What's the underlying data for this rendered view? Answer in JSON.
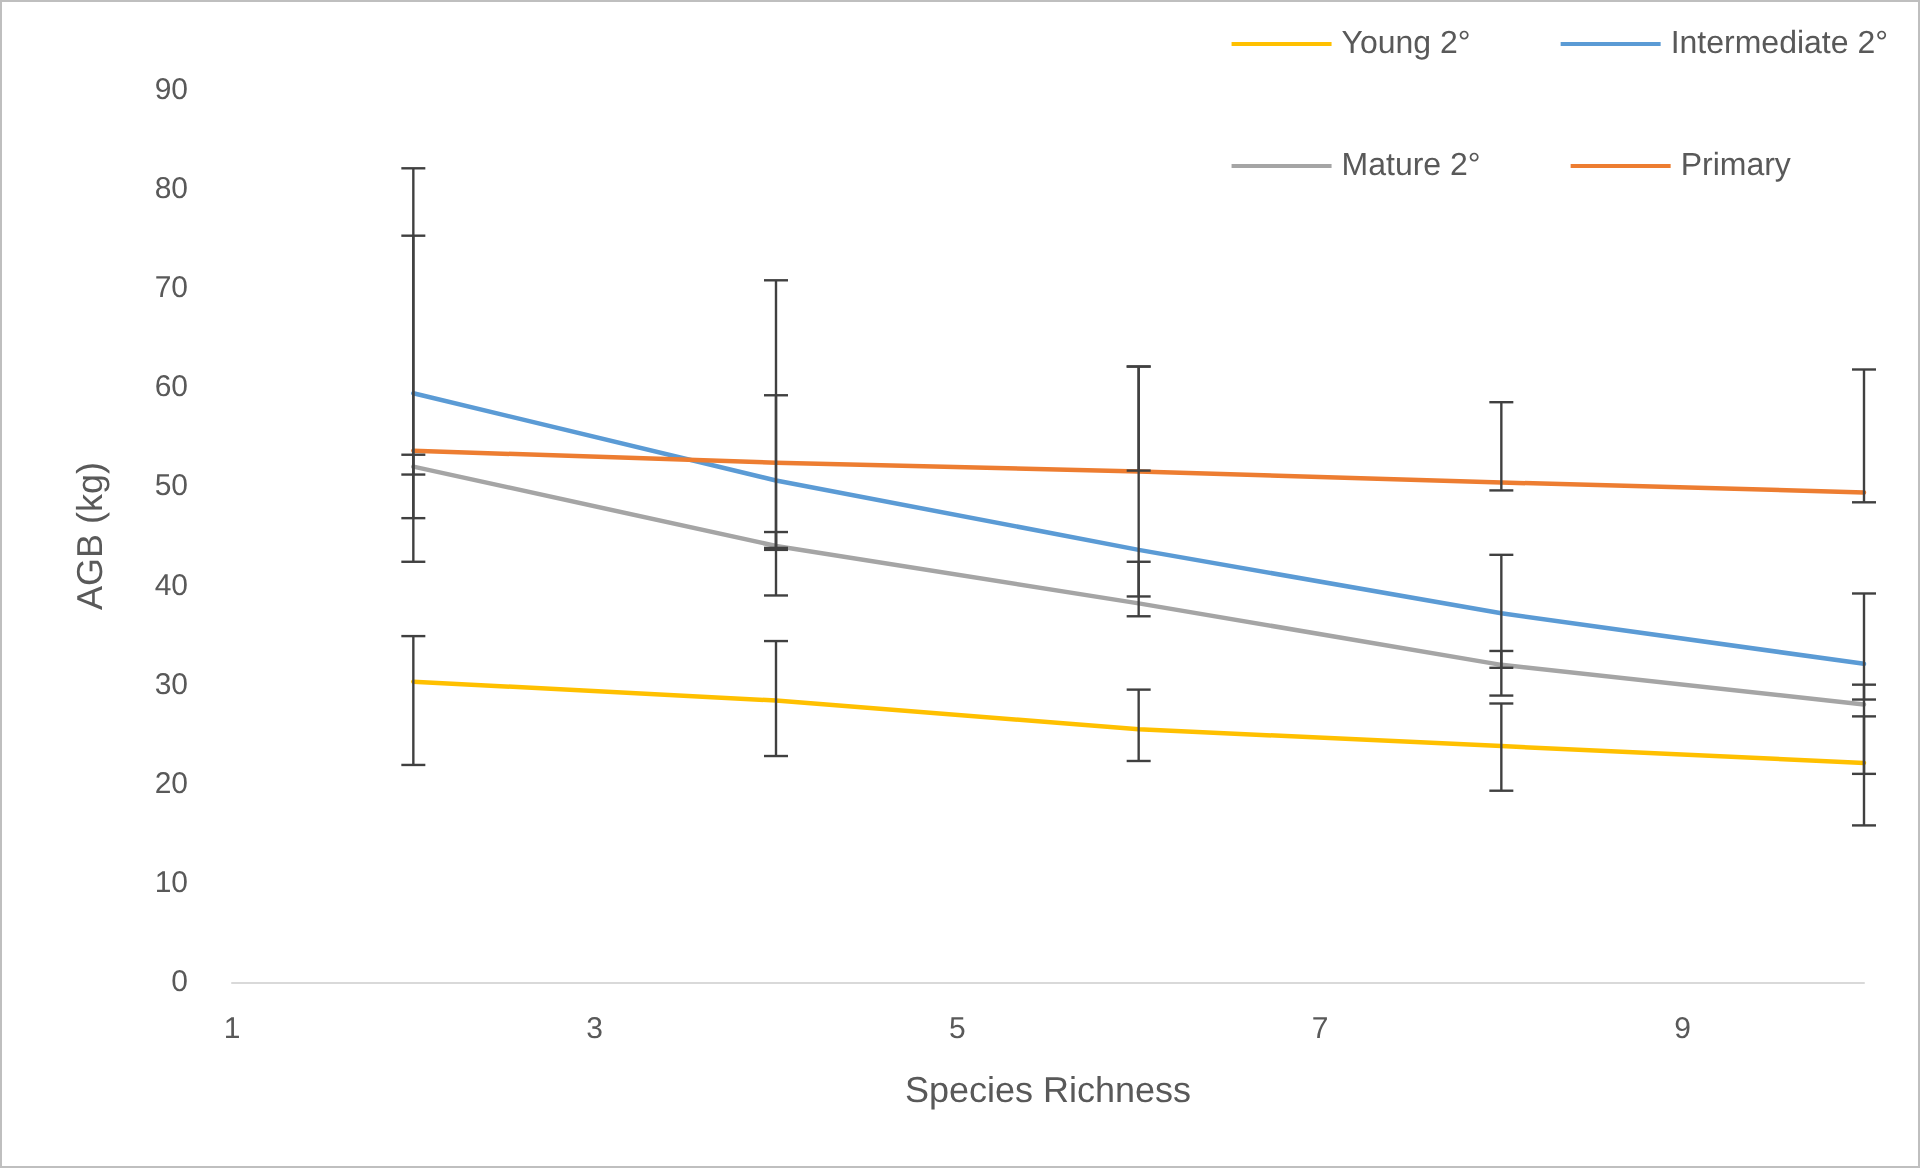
{
  "chart_data": {
    "type": "line",
    "xlabel": "Species Richness",
    "ylabel": "AGB (kg)",
    "x": [
      2,
      4,
      6,
      8,
      10
    ],
    "xlim": [
      1,
      10
    ],
    "xticks": [
      1,
      3,
      5,
      7,
      9
    ],
    "ylim": [
      0,
      90
    ],
    "yticks": [
      0,
      10,
      20,
      30,
      40,
      50,
      60,
      70,
      80,
      90
    ],
    "grid": false,
    "legend": "top right",
    "marker": "none",
    "line_style": "solid",
    "series": [
      {
        "name": "Young 2°",
        "color": "#ffc000",
        "values": [
          30.3,
          28.4,
          25.5,
          23.8,
          22.1
        ],
        "errors": [
          [
            21.9,
            34.9
          ],
          [
            22.8,
            34.4
          ],
          [
            22.3,
            29.5
          ],
          [
            19.3,
            28.1
          ],
          [
            15.8,
            26.8
          ]
        ]
      },
      {
        "name": "Intermediate 2°",
        "color": "#5b9bd5",
        "values": [
          59.4,
          50.6,
          43.6,
          37.2,
          32.1
        ],
        "errors": [
          [
            46.8,
            75.3
          ],
          [
            43.6,
            59.2
          ],
          [
            38.9,
            62.1
          ],
          [
            31.7,
            43.1
          ],
          [
            28.5,
            39.2
          ]
        ]
      },
      {
        "name": "Mature 2°",
        "color": "#a5a5a5",
        "values": [
          52.0,
          44.0,
          38.2,
          32.0,
          28.0
        ],
        "errors": [
          [
            42.4,
            53.2
          ],
          [
            39.0,
            45.4
          ],
          [
            36.9,
            42.4
          ],
          [
            28.9,
            33.4
          ],
          [
            21.0,
            30.0
          ]
        ]
      },
      {
        "name": "Primary",
        "color": "#ed7d31",
        "values": [
          53.6,
          52.4,
          51.5,
          50.4,
          49.4
        ],
        "errors": [
          [
            51.2,
            82.1
          ],
          [
            43.8,
            70.8
          ],
          [
            51.6,
            62.1
          ],
          [
            49.6,
            58.5
          ],
          [
            48.4,
            61.8
          ]
        ]
      }
    ]
  }
}
